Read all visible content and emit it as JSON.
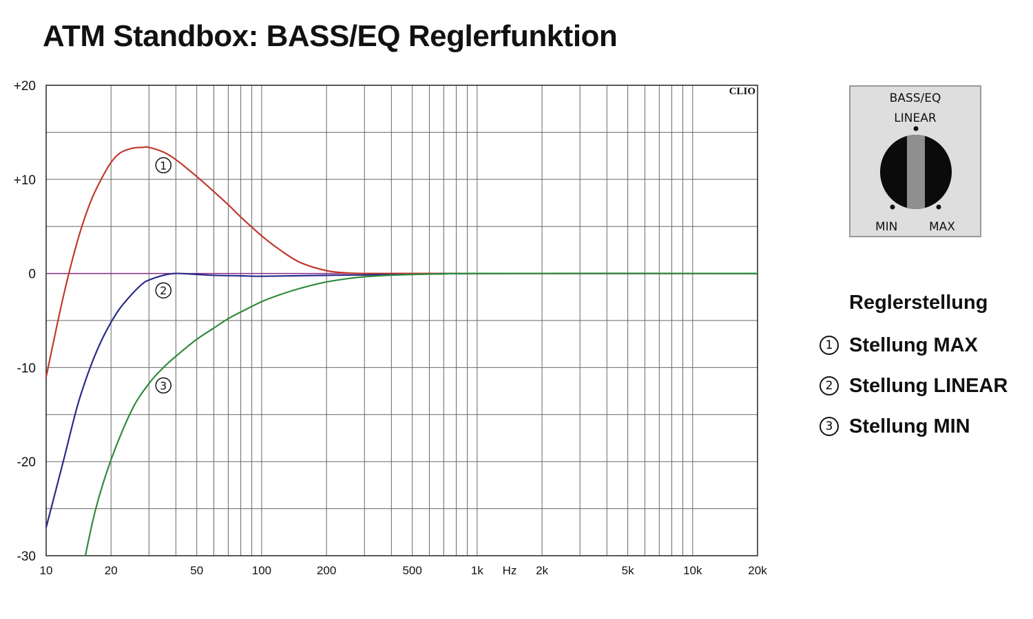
{
  "title": "ATM Standbox: BASS/EQ Reglerfunktion",
  "chart_data": {
    "type": "line",
    "title": "ATM Standbox: BASS/EQ Reglerfunktion",
    "x_scale": "log",
    "xlim": [
      10,
      20000
    ],
    "ylim": [
      -30,
      20
    ],
    "x_ticks": [
      {
        "value": 10,
        "label": "10"
      },
      {
        "value": 20,
        "label": "20"
      },
      {
        "value": 50,
        "label": "50"
      },
      {
        "value": 100,
        "label": "100"
      },
      {
        "value": 200,
        "label": "200"
      },
      {
        "value": 500,
        "label": "500"
      },
      {
        "value": 1000,
        "label": "1k"
      },
      {
        "value": 2000,
        "label": "2k"
      },
      {
        "value": 5000,
        "label": "5k"
      },
      {
        "value": 10000,
        "label": "10k"
      },
      {
        "value": 20000,
        "label": "20k"
      }
    ],
    "xlabel": "Hz",
    "y_ticks": [
      {
        "value": 20,
        "label": "+20"
      },
      {
        "value": 10,
        "label": "+10"
      },
      {
        "value": 0,
        "label": "0"
      },
      {
        "value": -10,
        "label": "-10"
      },
      {
        "value": -20,
        "label": "-20"
      },
      {
        "value": -30,
        "label": "-30"
      }
    ],
    "grid": true,
    "watermark": "CLIO",
    "reference_line": {
      "y": 0,
      "color": "#8a2b8a"
    },
    "series": [
      {
        "marker": "①",
        "color": "#c0392b",
        "x": [
          10,
          12,
          14,
          16,
          18,
          20,
          22,
          25,
          28,
          30,
          35,
          40,
          50,
          60,
          70,
          80,
          100,
          120,
          150,
          200,
          250,
          300,
          400,
          500,
          700,
          1000,
          20000
        ],
        "y": [
          -11,
          -2.5,
          3.5,
          7.5,
          10,
          11.8,
          12.8,
          13.3,
          13.4,
          13.4,
          12.9,
          12.1,
          10.3,
          8.7,
          7.3,
          6,
          4,
          2.6,
          1.2,
          0.3,
          0.05,
          0,
          0,
          0,
          0,
          0,
          0
        ]
      },
      {
        "marker": "②",
        "color": "#2a2a8a",
        "x": [
          10,
          12,
          14,
          16,
          18,
          20,
          22,
          25,
          28,
          30,
          35,
          40,
          50,
          60,
          80,
          100,
          200,
          500,
          1000,
          20000
        ],
        "y": [
          -27,
          -20,
          -14,
          -10,
          -7.2,
          -5.2,
          -3.7,
          -2.2,
          -1.1,
          -0.7,
          -0.2,
          0,
          -0.1,
          -0.2,
          -0.25,
          -0.3,
          -0.2,
          -0.1,
          0,
          0
        ]
      },
      {
        "marker": "③",
        "color": "#2e8b3a",
        "x": [
          15.2,
          17,
          20,
          25,
          30,
          35,
          40,
          50,
          60,
          70,
          80,
          100,
          120,
          150,
          200,
          300,
          500,
          700,
          1000,
          20000
        ],
        "y": [
          -30,
          -25,
          -19.8,
          -14.5,
          -11.7,
          -10,
          -8.8,
          -7,
          -5.8,
          -4.8,
          -4.1,
          -3,
          -2.3,
          -1.6,
          -0.9,
          -0.35,
          -0.1,
          -0.05,
          0,
          0
        ]
      }
    ]
  },
  "knob": {
    "title": "BASS/EQ",
    "top_label": "LINEAR",
    "left_label": "MIN",
    "right_label": "MAX"
  },
  "legend": {
    "title": "Reglerstellung",
    "items": [
      {
        "marker": "1",
        "label": "Stellung MAX"
      },
      {
        "marker": "2",
        "label": "Stellung LINEAR"
      },
      {
        "marker": "3",
        "label": "Stellung MIN"
      }
    ]
  }
}
